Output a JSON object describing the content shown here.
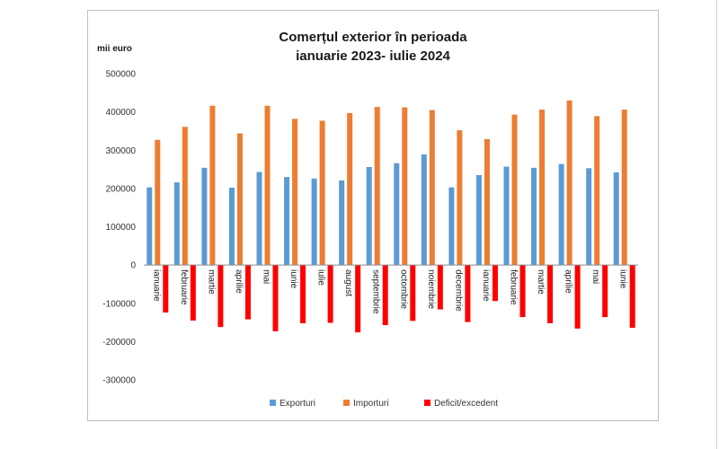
{
  "chart_data": {
    "type": "bar",
    "title_lines": [
      "Comerțul exterior în perioada",
      "ianuarie 2023- iulie 2024"
    ],
    "ylabel": "mii euro",
    "xlabel": "",
    "ylim": [
      -300000,
      500000
    ],
    "yticks": [
      500000,
      400000,
      300000,
      200000,
      100000,
      0,
      -100000,
      -200000,
      -300000
    ],
    "ytick_labels": [
      "500000",
      "400000",
      "300000",
      "200000",
      "100000",
      "0",
      "-100000",
      "-200000",
      "-300000"
    ],
    "grid": false,
    "legend": "bottom",
    "categories": [
      "ianuarie",
      "februarie",
      "martie",
      "aprilie",
      "mai",
      "iunie",
      "iulie",
      "august",
      "septembrie",
      "octombrie",
      "noiembrie",
      "decembrie",
      "ianuarie",
      "februarie",
      "martie",
      "aprilie",
      "mai",
      "iunie"
    ],
    "series": [
      {
        "name": "Exporturi",
        "color": "#5b9bd5",
        "values": [
          203000,
          216000,
          254000,
          202000,
          243000,
          230000,
          226000,
          221000,
          256000,
          266000,
          289000,
          203000,
          235000,
          257000,
          254000,
          264000,
          253000,
          242000
        ]
      },
      {
        "name": "Importuri",
        "color": "#ed7d31",
        "values": [
          327000,
          361000,
          416000,
          344000,
          416000,
          382000,
          377000,
          397000,
          413000,
          412000,
          405000,
          352000,
          329000,
          393000,
          406000,
          430000,
          389000,
          406000
        ]
      },
      {
        "name": "Deficit/excedent",
        "color": "#ff0000",
        "values": [
          -124000,
          -145000,
          -162000,
          -142000,
          -173000,
          -152000,
          -151000,
          -176000,
          -157000,
          -146000,
          -116000,
          -149000,
          -94000,
          -136000,
          -152000,
          -166000,
          -136000,
          -164000
        ]
      }
    ]
  }
}
